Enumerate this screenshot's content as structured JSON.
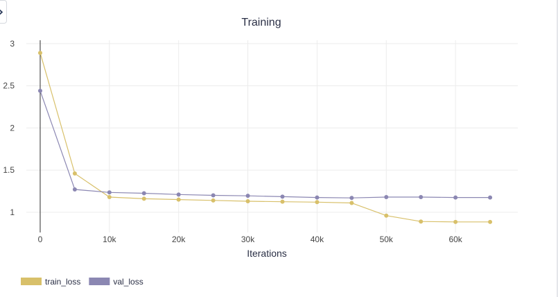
{
  "chart_data": {
    "type": "line",
    "title": "Training",
    "xlabel": "Iterations",
    "ylabel": "",
    "xlim": [
      -2000,
      69000
    ],
    "ylim": [
      0.76,
      3.04
    ],
    "x_ticks": [
      {
        "value": 0,
        "label": "0"
      },
      {
        "value": 10000,
        "label": "10k"
      },
      {
        "value": 20000,
        "label": "20k"
      },
      {
        "value": 30000,
        "label": "30k"
      },
      {
        "value": 40000,
        "label": "40k"
      },
      {
        "value": 50000,
        "label": "50k"
      },
      {
        "value": 60000,
        "label": "60k"
      }
    ],
    "y_ticks": [
      {
        "value": 1,
        "label": "1"
      },
      {
        "value": 1.5,
        "label": "1.5"
      },
      {
        "value": 2,
        "label": "2"
      },
      {
        "value": 2.5,
        "label": "2.5"
      },
      {
        "value": 3,
        "label": "3"
      }
    ],
    "grid": true,
    "legend_position": "bottom-left",
    "x": [
      0,
      5000,
      10000,
      15000,
      20000,
      25000,
      30000,
      35000,
      40000,
      45000,
      50000,
      55000,
      60000,
      65000
    ],
    "series": [
      {
        "name": "train_loss",
        "color": "#d8c06a",
        "values": [
          2.89,
          1.46,
          1.18,
          1.16,
          1.15,
          1.14,
          1.13,
          1.125,
          1.12,
          1.11,
          0.96,
          0.89,
          0.885,
          0.885
        ]
      },
      {
        "name": "val_loss",
        "color": "#8b87b2",
        "values": [
          2.44,
          1.27,
          1.235,
          1.225,
          1.21,
          1.2,
          1.195,
          1.185,
          1.175,
          1.17,
          1.18,
          1.18,
          1.175,
          1.175
        ]
      }
    ]
  }
}
